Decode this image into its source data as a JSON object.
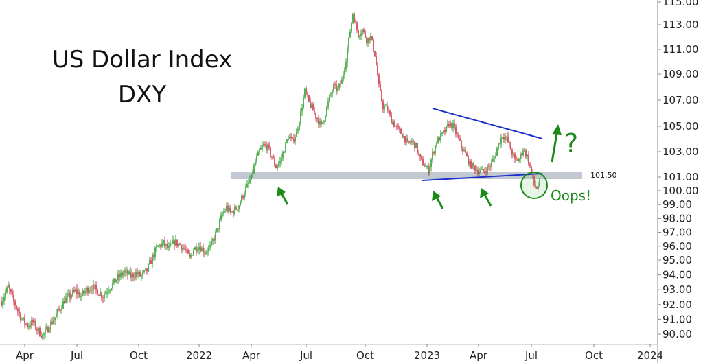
{
  "chart_data": {
    "type": "candlestick",
    "title": "US Dollar Index",
    "subtitle": "DXY",
    "y_ticks": [
      "90.00",
      "91.00",
      "92.00",
      "93.00",
      "94.00",
      "95.00",
      "96.00",
      "97.00",
      "98.00",
      "99.00",
      "100.00",
      "101.00",
      "103.00",
      "105.00",
      "107.00",
      "109.00",
      "111.00",
      "113.00",
      "115.00"
    ],
    "x_ticks": [
      "Apr",
      "Jul",
      "Oct",
      "2022",
      "Apr",
      "Jul",
      "Oct",
      "2023",
      "Apr",
      "Jul",
      "Oct",
      "2024"
    ],
    "support_level": 101.5,
    "support_label": "101.50",
    "annotations": {
      "oops": "Oops!",
      "question": "?"
    },
    "colors": {
      "up": "#2e9e2e",
      "down": "#cc3344",
      "trendline": "#1a2fcc",
      "support_band": "#c2c8d2",
      "annotation": "#1a8a1a"
    },
    "series": [
      {
        "values": [
          [
            0,
            92.0
          ],
          [
            6,
            92.6
          ],
          [
            12,
            93.2
          ],
          [
            18,
            92.4
          ],
          [
            24,
            91.8
          ],
          [
            32,
            91.0
          ],
          [
            40,
            90.6
          ],
          [
            48,
            90.8
          ],
          [
            56,
            90.2
          ],
          [
            62,
            89.9
          ],
          [
            70,
            90.4
          ],
          [
            78,
            91.0
          ],
          [
            86,
            91.6
          ],
          [
            94,
            92.3
          ],
          [
            102,
            92.6
          ],
          [
            110,
            92.9
          ],
          [
            118,
            92.6
          ],
          [
            126,
            93.0
          ],
          [
            134,
            93.2
          ],
          [
            142,
            92.9
          ],
          [
            150,
            92.6
          ],
          [
            158,
            93.1
          ],
          [
            166,
            93.5
          ],
          [
            174,
            93.9
          ],
          [
            182,
            94.2
          ],
          [
            190,
            93.9
          ],
          [
            198,
            94.1
          ],
          [
            206,
            93.9
          ],
          [
            214,
            94.3
          ],
          [
            222,
            95.2
          ],
          [
            230,
            96.0
          ],
          [
            238,
            96.2
          ],
          [
            246,
            95.8
          ],
          [
            254,
            96.3
          ],
          [
            262,
            96.1
          ],
          [
            270,
            95.7
          ],
          [
            276,
            95.1
          ],
          [
            282,
            95.8
          ],
          [
            290,
            96.0
          ],
          [
            298,
            95.6
          ],
          [
            306,
            95.9
          ],
          [
            312,
            96.6
          ],
          [
            318,
            97.4
          ],
          [
            324,
            98.3
          ],
          [
            330,
            98.8
          ],
          [
            336,
            98.4
          ],
          [
            342,
            98.6
          ],
          [
            348,
            99.0
          ],
          [
            354,
            99.7
          ],
          [
            360,
            100.3
          ],
          [
            366,
            101.0
          ],
          [
            372,
            102.2
          ],
          [
            378,
            103.0
          ],
          [
            384,
            103.5
          ],
          [
            390,
            103.3
          ],
          [
            396,
            102.6
          ],
          [
            402,
            101.8
          ],
          [
            408,
            102.2
          ],
          [
            414,
            103.2
          ],
          [
            420,
            104.2
          ],
          [
            426,
            103.8
          ],
          [
            432,
            104.5
          ],
          [
            438,
            106.0
          ],
          [
            444,
            107.7
          ],
          [
            450,
            106.8
          ],
          [
            456,
            106.2
          ],
          [
            462,
            105.6
          ],
          [
            468,
            105.0
          ],
          [
            474,
            106.0
          ],
          [
            480,
            107.2
          ],
          [
            486,
            108.0
          ],
          [
            492,
            107.8
          ],
          [
            498,
            108.5
          ],
          [
            504,
            110.2
          ],
          [
            510,
            112.5
          ],
          [
            514,
            114.0
          ],
          [
            518,
            113.0
          ],
          [
            522,
            112.2
          ],
          [
            528,
            112.6
          ],
          [
            534,
            111.8
          ],
          [
            540,
            112.0
          ],
          [
            546,
            110.6
          ],
          [
            552,
            108.0
          ],
          [
            558,
            106.5
          ],
          [
            564,
            106.3
          ],
          [
            570,
            105.5
          ],
          [
            576,
            105.0
          ],
          [
            582,
            104.6
          ],
          [
            588,
            104.2
          ],
          [
            594,
            103.6
          ],
          [
            600,
            103.8
          ],
          [
            606,
            103.4
          ],
          [
            612,
            102.4
          ],
          [
            618,
            101.9
          ],
          [
            624,
            101.5
          ],
          [
            630,
            102.8
          ],
          [
            636,
            103.8
          ],
          [
            642,
            104.2
          ],
          [
            648,
            104.6
          ],
          [
            654,
            105.2
          ],
          [
            660,
            105.0
          ],
          [
            666,
            104.2
          ],
          [
            672,
            103.4
          ],
          [
            678,
            102.8
          ],
          [
            684,
            102.0
          ],
          [
            690,
            101.8
          ],
          [
            696,
            101.5
          ],
          [
            702,
            101.4
          ],
          [
            708,
            101.6
          ],
          [
            714,
            101.9
          ],
          [
            720,
            102.5
          ],
          [
            726,
            103.6
          ],
          [
            732,
            104.3
          ],
          [
            738,
            104.0
          ],
          [
            744,
            103.2
          ],
          [
            750,
            102.3
          ],
          [
            756,
            102.4
          ],
          [
            762,
            103.2
          ],
          [
            768,
            102.6
          ],
          [
            774,
            101.4
          ],
          [
            778,
            100.4
          ],
          [
            782,
            100.2
          ],
          [
            786,
            100.6
          ]
        ]
      }
    ]
  }
}
